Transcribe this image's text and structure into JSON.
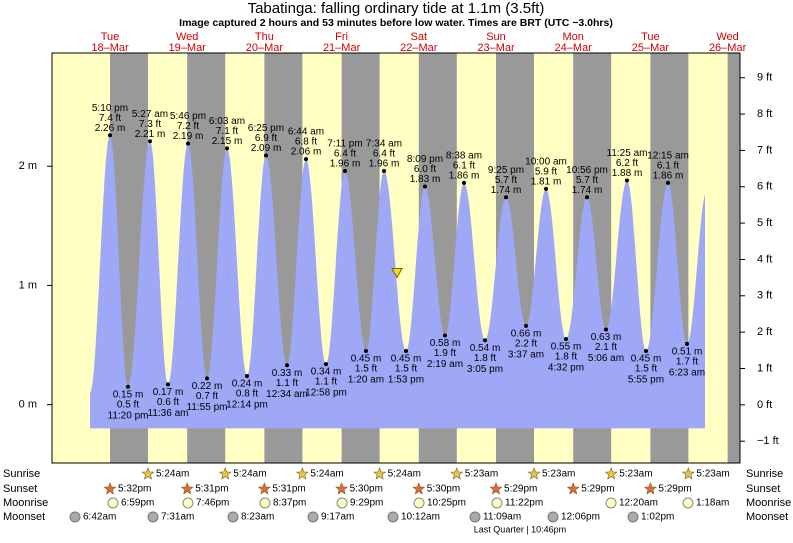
{
  "chart_data": {
    "type": "tide",
    "title": "Tabatinga: falling  ordinary tide at 1.1m (3.5ft)",
    "subtitle": "Image captured 2 hours and 53 minutes before low water. Times are BRT (UTC −3.0hrs)",
    "current_level": 1.1,
    "days": [
      {
        "dow": "Tue",
        "date": "18–Mar"
      },
      {
        "dow": "Wed",
        "date": "19–Mar"
      },
      {
        "dow": "Thu",
        "date": "20–Mar"
      },
      {
        "dow": "Fri",
        "date": "21–Mar"
      },
      {
        "dow": "Sat",
        "date": "22–Mar"
      },
      {
        "dow": "Sun",
        "date": "23–Mar"
      },
      {
        "dow": "Mon",
        "date": "24–Mar"
      },
      {
        "dow": "Tue",
        "date": "25–Mar"
      },
      {
        "dow": "Wed",
        "date": "26–Mar"
      }
    ],
    "highs": {
      "times": [
        "5:10 pm",
        "5:27 am",
        "5:46 pm",
        "6:03 am",
        "6:25 pm",
        "6:44 am",
        "7:11 pm",
        "7:34 am",
        "8:09 pm",
        "8:38 am",
        "9:25 pm",
        "10:00 am",
        "10:56 pm",
        "11:25 am",
        "12:15 am"
      ],
      "values": [
        2.26,
        2.21,
        2.19,
        2.15,
        2.09,
        2.06,
        1.96,
        1.96,
        1.83,
        1.86,
        1.74,
        1.81,
        1.74,
        1.88,
        1.86
      ],
      "value_labels": [
        "2.26 m",
        "2.21 m",
        "2.19 m",
        "2.15 m",
        "2.09 m",
        "2.06 m",
        "1.96 m",
        "1.96 m",
        "1.83 m",
        "1.86 m",
        "1.74 m",
        "1.81 m",
        "1.74 m",
        "1.88 m",
        "1.86 m"
      ],
      "ft_labels": [
        "7.4 ft",
        "7.3 ft",
        "7.2 ft",
        "7.1 ft",
        "6.9 ft",
        "6.8 ft",
        "6.4 ft",
        "6.4 ft",
        "6.0 ft",
        "6.1 ft",
        "5.7 ft",
        "5.9 ft",
        "5.7 ft",
        "6.2 ft",
        "6.1 ft"
      ]
    },
    "lows": {
      "times": [
        "11:20 pm",
        "11:36 am",
        "11:55 pm",
        "12:14 pm",
        "12:34 am",
        "12:58 pm",
        "1:20 am",
        "1:53 pm",
        "2:19 am",
        "3:05 pm",
        "3:37 am",
        "4:32 pm",
        "5:06 am",
        "5:55 pm",
        "6:23 am"
      ],
      "values": [
        0.15,
        0.17,
        0.22,
        0.24,
        0.33,
        0.34,
        0.45,
        0.45,
        0.58,
        0.54,
        0.66,
        0.55,
        0.63,
        0.45,
        0.51
      ],
      "value_labels": [
        "0.15 m",
        "0.17 m",
        "0.22 m",
        "0.24 m",
        "0.33 m",
        "0.34 m",
        "0.45 m",
        "0.45 m",
        "0.58 m",
        "0.54 m",
        "0.66 m",
        "0.55 m",
        "0.63 m",
        "0.45 m",
        "0.51 m"
      ],
      "ft_labels": [
        "0.5 ft",
        "0.6 ft",
        "0.7 ft",
        "0.8 ft",
        "1.1 ft",
        "1.1 ft",
        "1.5 ft",
        "1.5 ft",
        "1.9 ft",
        "1.8 ft",
        "2.2 ft",
        "1.8 ft",
        "2.1 ft",
        "1.5 ft",
        "1.7 ft"
      ]
    },
    "ylim": [
      -0.49,
      2.95
    ],
    "yticks": [
      {
        "value": 0,
        "label": "0 m"
      },
      {
        "value": 1,
        "label": "1 m"
      },
      {
        "value": 2,
        "label": "2 m"
      }
    ],
    "y2lim": [
      -1.6,
      9.68
    ],
    "y2ticks": [
      {
        "value": -1,
        "label": "−1 ft"
      },
      {
        "value": 0,
        "label": "0 ft"
      },
      {
        "value": 1,
        "label": "1 ft"
      },
      {
        "value": 2,
        "label": "2 ft"
      },
      {
        "value": 3,
        "label": "3 ft"
      },
      {
        "value": 4,
        "label": "4 ft"
      },
      {
        "value": 5,
        "label": "5 ft"
      },
      {
        "value": 6,
        "label": "6 ft"
      },
      {
        "value": 7,
        "label": "7 ft"
      },
      {
        "value": 8,
        "label": "8 ft"
      },
      {
        "value": 9,
        "label": "9 ft"
      }
    ],
    "rows": [
      {
        "name": "Sunrise",
        "times": [
          "5:24am",
          "5:24am",
          "5:24am",
          "5:24am",
          "5:23am",
          "5:23am",
          "5:23am",
          "5:23am"
        ]
      },
      {
        "name": "Sunset",
        "times": [
          "5:32pm",
          "5:31pm",
          "5:31pm",
          "5:30pm",
          "5:30pm",
          "5:29pm",
          "5:29pm",
          "5:29pm"
        ]
      },
      {
        "name": "Moonrise",
        "times": [
          "6:59pm",
          "7:46pm",
          "8:37pm",
          "9:29pm",
          "10:25pm",
          "11:22pm",
          "12:20am",
          "1:18am"
        ]
      },
      {
        "name": "Moonset",
        "times": [
          "6:42am",
          "7:31am",
          "8:23am",
          "9:17am",
          "10:12am",
          "11:09am",
          "12:06pm",
          "1:02pm"
        ]
      }
    ],
    "moon_phase": "Last Quarter | 10:46pm"
  }
}
